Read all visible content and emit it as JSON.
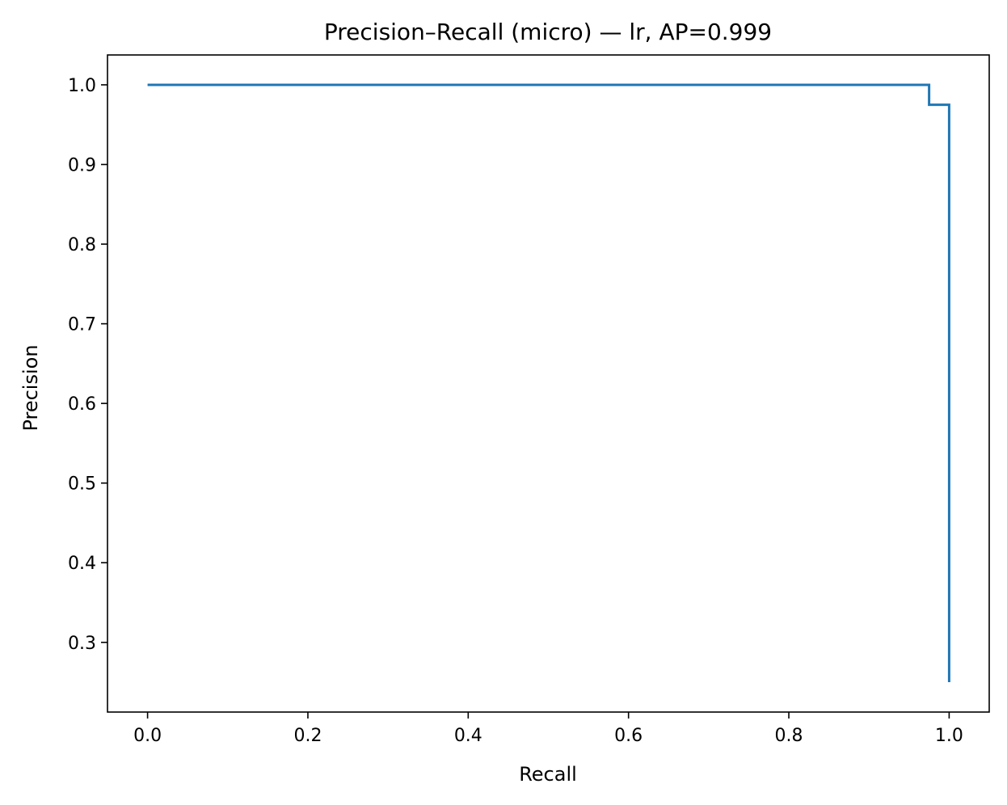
{
  "chart_data": {
    "type": "line",
    "title": "Precision–Recall (micro) — lr, AP=0.999",
    "xlabel": "Recall",
    "ylabel": "Precision",
    "xlim": [
      -0.05,
      1.05
    ],
    "ylim": [
      0.2125,
      1.0375
    ],
    "xticks": [
      0.0,
      0.2,
      0.4,
      0.6,
      0.8,
      1.0
    ],
    "xtick_labels": [
      "0.0",
      "0.2",
      "0.4",
      "0.6",
      "0.8",
      "1.0"
    ],
    "yticks": [
      0.3,
      0.4,
      0.5,
      0.6,
      0.7,
      0.8,
      0.9,
      1.0
    ],
    "ytick_labels": [
      "0.3",
      "0.4",
      "0.5",
      "0.6",
      "0.7",
      "0.8",
      "0.9",
      "1.0"
    ],
    "grid": false,
    "line_color": "#1f77b4",
    "series": [
      {
        "step": "post",
        "x": [
          0.0,
          0.975,
          0.975,
          1.0,
          1.0
        ],
        "y": [
          1.0,
          1.0,
          0.975,
          0.975,
          0.25
        ]
      }
    ]
  }
}
